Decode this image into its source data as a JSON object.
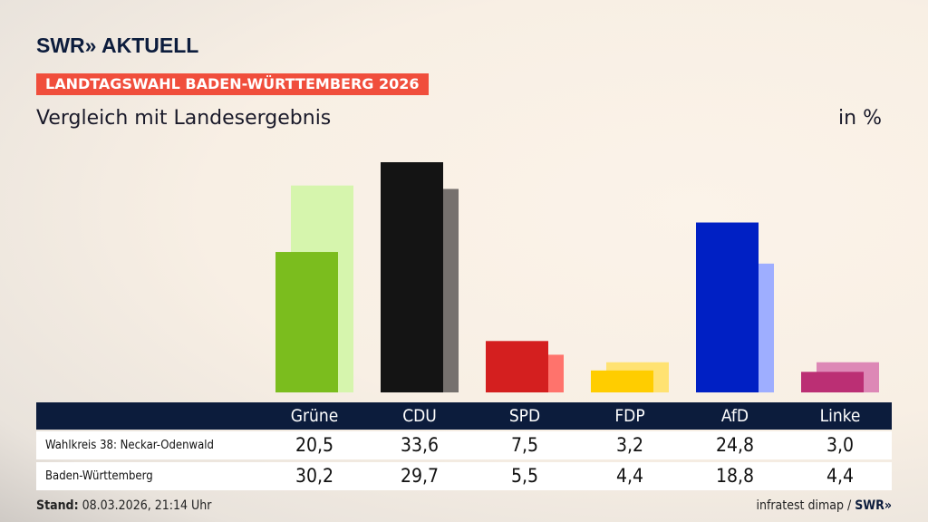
{
  "logo": "SWR» AKTUELL",
  "kicker": "LANDTAGSWAHL BADEN-WÜRTTEMBERG 2026",
  "title": "Vergleich mit Landesergebnis",
  "unit": "in %",
  "chart_data": {
    "type": "bar",
    "categories": [
      "Grüne",
      "CDU",
      "SPD",
      "FDP",
      "AfD",
      "Linke"
    ],
    "series": [
      {
        "name": "Wahlkreis 38: Neckar-Odenwald",
        "values": [
          20.5,
          33.6,
          7.5,
          3.2,
          24.8,
          3.0
        ],
        "display": [
          "20,5",
          "33,6",
          "7,5",
          "3,2",
          "24,8",
          "3,0"
        ]
      },
      {
        "name": "Baden-Württemberg",
        "values": [
          30.2,
          29.7,
          5.5,
          4.4,
          18.8,
          4.4
        ],
        "display": [
          "30,2",
          "29,7",
          "5,5",
          "4,4",
          "18,8",
          "4,4"
        ]
      }
    ],
    "colors": [
      "#7bbd1e",
      "#141414",
      "#d41f1f",
      "#ffcd00",
      "#0020c4",
      "#bb2f74"
    ],
    "light_colors": [
      "#d6f5ad",
      "#76716e",
      "#ff736c",
      "#ffe272",
      "#9eaeff",
      "#dd88b6"
    ],
    "ylim": [
      0,
      34
    ]
  },
  "footer": {
    "stand_label": "Stand:",
    "stand_value": "08.03.2026, 21:14 Uhr",
    "source": "infratest dimap / ",
    "source_logo": "SWR»"
  }
}
